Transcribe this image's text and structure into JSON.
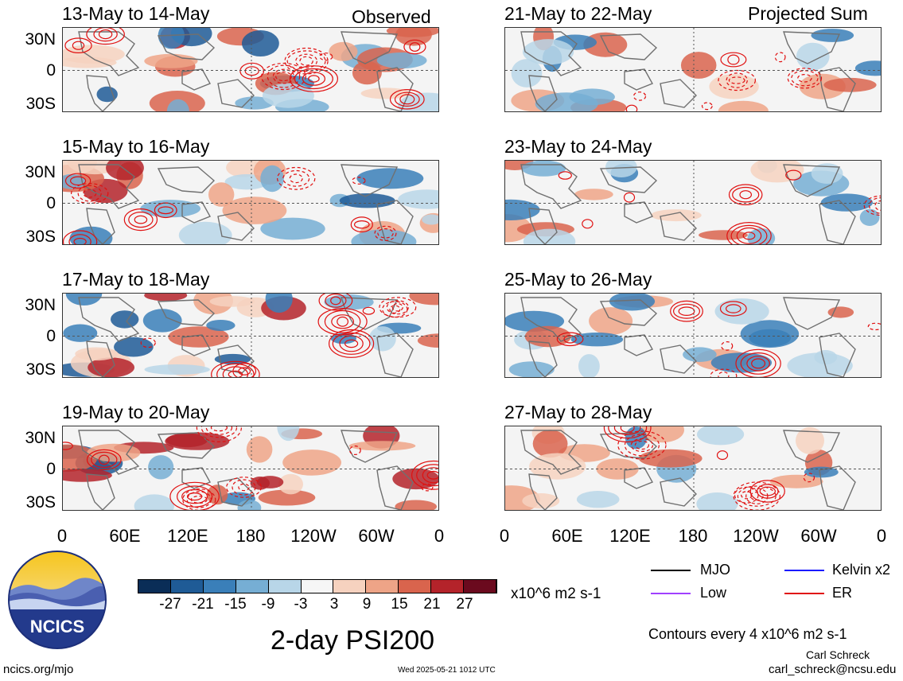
{
  "headers": {
    "left": "Observed",
    "right": "Projected Sum"
  },
  "lat_labels": [
    "30N",
    "0",
    "30S"
  ],
  "lon_labels": [
    "0",
    "60E",
    "120E",
    "180",
    "120W",
    "60W",
    "0"
  ],
  "panels_observed": [
    {
      "title": "13-May to 14-May"
    },
    {
      "title": "15-May to 16-May"
    },
    {
      "title": "17-May to 18-May"
    },
    {
      "title": "19-May to 20-May"
    }
  ],
  "panels_projected": [
    {
      "title": "21-May to 22-May"
    },
    {
      "title": "23-May to 24-May"
    },
    {
      "title": "25-May to 26-May"
    },
    {
      "title": "27-May to 28-May"
    }
  ],
  "colorbar": {
    "ticks": [
      "-27",
      "-21",
      "-15",
      "-9",
      "-3",
      "3",
      "9",
      "15",
      "21",
      "27"
    ],
    "colors": [
      "#0a2d57",
      "#1f5b96",
      "#3a7fb9",
      "#76aed4",
      "#b8d6e8",
      "#f6f6f6",
      "#f6d2bf",
      "#eea487",
      "#d9644d",
      "#b4232a",
      "#6b0a1e"
    ],
    "units": "x10^6 m2 s-1"
  },
  "legend": [
    {
      "label": "MJO",
      "color": "#000000"
    },
    {
      "label": "Kelvin x2",
      "color": "#1a1aff"
    },
    {
      "label": "Low",
      "color": "#a040ff"
    },
    {
      "label": "ER",
      "color": "#e01010"
    }
  ],
  "main_title": "2-day PSI200",
  "contour_note": "Contours every 4 x10^6 m2 s-1",
  "author": "Carl Schreck",
  "email": "carl_schreck@ncsu.edu",
  "site": "ncics.org/mjo",
  "timestamp": "Wed 2025-05-21 1012 UTC",
  "logo_text": "NCICS"
}
